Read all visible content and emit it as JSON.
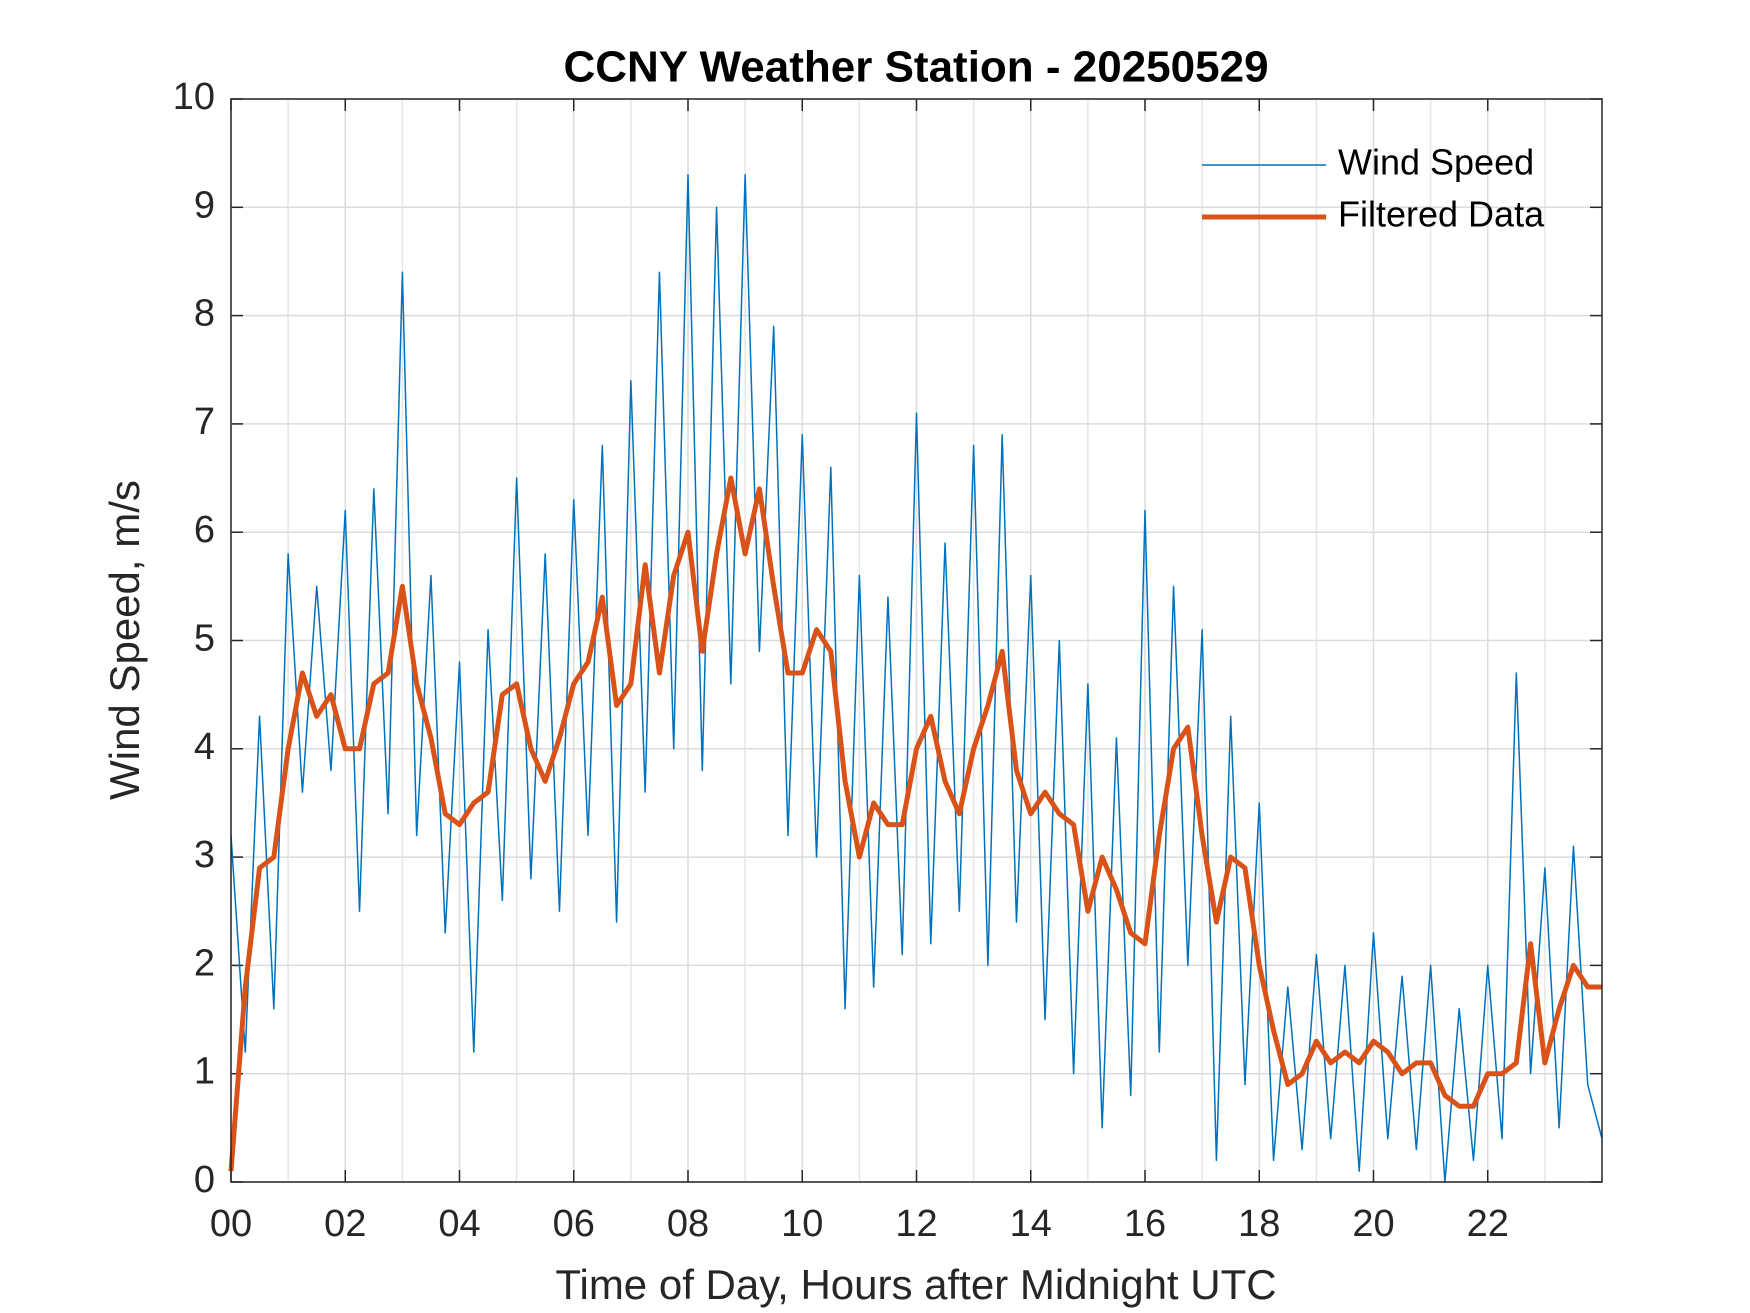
{
  "chart_data": {
    "type": "line",
    "title": "CCNY Weather Station - 20250529",
    "x_label": "Time of Day, Hours after Midnight UTC",
    "y_label": "Wind Speed, m/s",
    "x": [
      0,
      0.25,
      0.5,
      0.75,
      1,
      1.25,
      1.5,
      1.75,
      2,
      2.25,
      2.5,
      2.75,
      3,
      3.25,
      3.5,
      3.75,
      4,
      4.25,
      4.5,
      4.75,
      5,
      5.25,
      5.5,
      5.75,
      6,
      6.25,
      6.5,
      6.75,
      7,
      7.25,
      7.5,
      7.75,
      8,
      8.25,
      8.5,
      8.75,
      9,
      9.25,
      9.5,
      9.75,
      10,
      10.25,
      10.5,
      10.75,
      11,
      11.25,
      11.5,
      11.75,
      12,
      12.25,
      12.5,
      12.75,
      13,
      13.25,
      13.5,
      13.75,
      14,
      14.25,
      14.5,
      14.75,
      15,
      15.25,
      15.5,
      15.75,
      16,
      16.25,
      16.5,
      16.75,
      17,
      17.25,
      17.5,
      17.75,
      18,
      18.25,
      18.5,
      18.75,
      19,
      19.25,
      19.5,
      19.75,
      20,
      20.25,
      20.5,
      20.75,
      21,
      21.25,
      21.5,
      21.75,
      22,
      22.25,
      22.5,
      22.75,
      23,
      23.25,
      23.5,
      23.75,
      24
    ],
    "series": [
      {
        "name": "Wind Speed",
        "color": "#0072BD",
        "width": 1.5,
        "values": [
          3.2,
          1.2,
          4.3,
          1.6,
          5.8,
          3.6,
          5.5,
          3.8,
          6.2,
          2.5,
          6.4,
          3.4,
          8.4,
          3.2,
          5.6,
          2.3,
          4.8,
          1.2,
          5.1,
          2.6,
          6.5,
          2.8,
          5.8,
          2.5,
          6.3,
          3.2,
          6.8,
          2.4,
          7.4,
          3.6,
          8.4,
          4.0,
          9.3,
          3.8,
          9.0,
          4.6,
          9.3,
          4.9,
          7.9,
          3.2,
          6.9,
          3.0,
          6.6,
          1.6,
          5.6,
          1.8,
          5.4,
          2.1,
          7.1,
          2.2,
          5.9,
          2.5,
          6.8,
          2.0,
          6.9,
          2.4,
          5.6,
          1.5,
          5.0,
          1.0,
          4.6,
          0.5,
          4.1,
          0.8,
          6.2,
          1.2,
          5.5,
          2.0,
          5.1,
          0.2,
          4.3,
          0.9,
          3.5,
          0.2,
          1.8,
          0.3,
          2.1,
          0.4,
          2.0,
          0.1,
          2.3,
          0.4,
          1.9,
          0.3,
          2.0,
          0.0,
          1.6,
          0.2,
          2.0,
          0.4,
          4.7,
          1.0,
          2.9,
          0.5,
          3.1,
          0.9,
          0.4
        ]
      },
      {
        "name": "Filtered Data",
        "color": "#D95319",
        "width": 5,
        "values": [
          0.1,
          1.8,
          2.9,
          3.0,
          4.0,
          4.7,
          4.3,
          4.5,
          4.0,
          4.0,
          4.6,
          4.7,
          5.5,
          4.6,
          4.1,
          3.4,
          3.3,
          3.5,
          3.6,
          4.5,
          4.6,
          4.0,
          3.7,
          4.1,
          4.6,
          4.8,
          5.4,
          4.4,
          4.6,
          5.7,
          4.7,
          5.6,
          6.0,
          4.9,
          5.8,
          6.5,
          5.8,
          6.4,
          5.5,
          4.7,
          4.7,
          5.1,
          4.9,
          3.7,
          3.0,
          3.5,
          3.3,
          3.3,
          4.0,
          4.3,
          3.7,
          3.4,
          4.0,
          4.4,
          4.9,
          3.8,
          3.4,
          3.6,
          3.4,
          3.3,
          2.5,
          3.0,
          2.7,
          2.3,
          2.2,
          3.2,
          4.0,
          4.2,
          3.2,
          2.4,
          3.0,
          2.9,
          2.0,
          1.4,
          0.9,
          1.0,
          1.3,
          1.1,
          1.2,
          1.1,
          1.3,
          1.2,
          1.0,
          1.1,
          1.1,
          0.8,
          0.7,
          0.7,
          1.0,
          1.0,
          1.1,
          2.2,
          1.1,
          1.6,
          2.0,
          1.8,
          1.8
        ]
      }
    ],
    "xlim": [
      0,
      24
    ],
    "xticks": [
      {
        "value": 0,
        "label": "00"
      },
      {
        "value": 2,
        "label": "02"
      },
      {
        "value": 4,
        "label": "04"
      },
      {
        "value": 6,
        "label": "06"
      },
      {
        "value": 8,
        "label": "08"
      },
      {
        "value": 10,
        "label": "10"
      },
      {
        "value": 12,
        "label": "12"
      },
      {
        "value": 14,
        "label": "14"
      },
      {
        "value": 16,
        "label": "16"
      },
      {
        "value": 18,
        "label": "18"
      },
      {
        "value": 20,
        "label": "20"
      },
      {
        "value": 22,
        "label": "22"
      }
    ],
    "ylim": [
      0,
      10
    ],
    "yticks": [
      0,
      1,
      2,
      3,
      4,
      5,
      6,
      7,
      8,
      9,
      10
    ],
    "grid": true,
    "legend": "northeast"
  }
}
